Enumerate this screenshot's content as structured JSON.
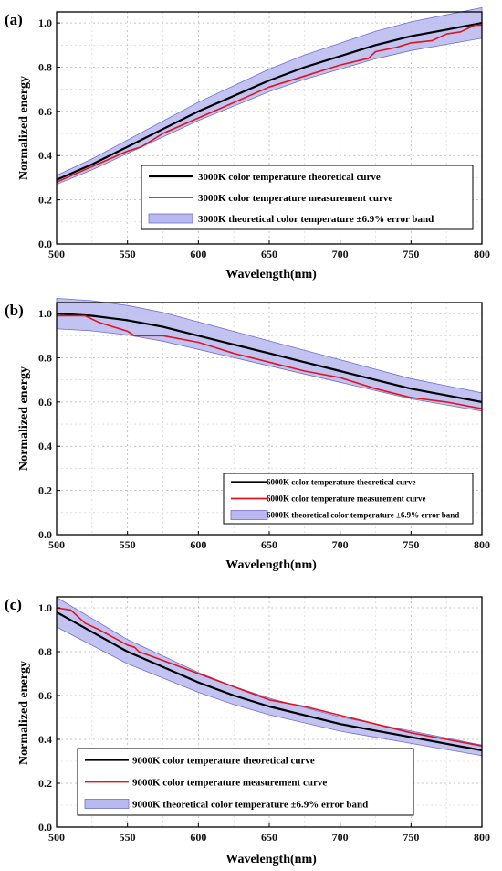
{
  "chart_data": [
    {
      "panel_label": "(a)",
      "type": "line",
      "xlabel": "Wavelength(nm)",
      "ylabel": "Normalized energy",
      "xlim": [
        500,
        800
      ],
      "ylim": [
        0,
        1.05
      ],
      "xticks": [
        500,
        550,
        600,
        650,
        700,
        750,
        800
      ],
      "yticks": [
        0.0,
        0.2,
        0.4,
        0.6,
        0.8,
        1.0
      ],
      "grid": true,
      "legend_position": "bottom-right",
      "error_band": {
        "name": "3000K theoretical color temperature ±6.9% error band",
        "relative": 0.069,
        "color": "#b9b9f0"
      },
      "series": [
        {
          "name": "3000K color temperature theoretical curve",
          "color": "#000000",
          "x": [
            500,
            525,
            550,
            575,
            600,
            625,
            650,
            675,
            700,
            725,
            750,
            775,
            800
          ],
          "y": [
            0.29,
            0.36,
            0.44,
            0.52,
            0.6,
            0.67,
            0.74,
            0.8,
            0.85,
            0.9,
            0.94,
            0.97,
            1.0
          ]
        },
        {
          "name": "3000K color temperature measurement curve",
          "color": "#e0141e",
          "x": [
            500,
            525,
            550,
            560,
            575,
            600,
            625,
            650,
            675,
            700,
            720,
            725,
            740,
            750,
            765,
            775,
            785,
            795,
            800
          ],
          "y": [
            0.28,
            0.35,
            0.42,
            0.44,
            0.5,
            0.57,
            0.64,
            0.71,
            0.76,
            0.81,
            0.84,
            0.87,
            0.89,
            0.91,
            0.92,
            0.95,
            0.96,
            0.99,
            0.99
          ]
        }
      ]
    },
    {
      "panel_label": "(b)",
      "type": "line",
      "xlabel": "Wavelength(nm)",
      "ylabel": "Normalized energy",
      "xlim": [
        500,
        800
      ],
      "ylim": [
        0,
        1.05
      ],
      "xticks": [
        500,
        550,
        600,
        650,
        700,
        750,
        800
      ],
      "yticks": [
        0.0,
        0.2,
        0.4,
        0.6,
        0.8,
        1.0
      ],
      "grid": true,
      "legend_position": "bottom-right",
      "error_band": {
        "name": "6000K theoretical color temperature ±6.9% error band",
        "relative": 0.069,
        "color": "#b9b9f0"
      },
      "series": [
        {
          "name": "6000K color temperature theoretical curve",
          "color": "#000000",
          "x": [
            500,
            525,
            550,
            575,
            600,
            625,
            650,
            675,
            700,
            725,
            750,
            775,
            800
          ],
          "y": [
            1.0,
            0.99,
            0.97,
            0.94,
            0.9,
            0.86,
            0.82,
            0.78,
            0.74,
            0.7,
            0.66,
            0.63,
            0.6
          ]
        },
        {
          "name": "6000K color temperature measurement curve",
          "color": "#e0141e",
          "x": [
            500,
            510,
            520,
            530,
            550,
            555,
            575,
            600,
            625,
            650,
            675,
            700,
            725,
            750,
            775,
            800
          ],
          "y": [
            0.99,
            0.99,
            0.99,
            0.96,
            0.92,
            0.9,
            0.9,
            0.87,
            0.82,
            0.78,
            0.74,
            0.71,
            0.66,
            0.62,
            0.6,
            0.57
          ]
        }
      ]
    },
    {
      "panel_label": "(c)",
      "type": "line",
      "xlabel": "Wavelength(nm)",
      "ylabel": "Normalized energy",
      "xlim": [
        500,
        800
      ],
      "ylim": [
        0,
        1.05
      ],
      "xticks": [
        500,
        550,
        600,
        650,
        700,
        750,
        800
      ],
      "yticks": [
        0.0,
        0.2,
        0.4,
        0.6,
        0.8,
        1.0
      ],
      "grid": true,
      "legend_position": "bottom-left",
      "error_band": {
        "name": "9000K theoretical color temperature ±6.9% error band",
        "relative": 0.069,
        "color": "#b9b9f0"
      },
      "series": [
        {
          "name": "9000K color temperature theoretical curve",
          "color": "#000000",
          "x": [
            500,
            525,
            550,
            575,
            600,
            625,
            650,
            675,
            700,
            725,
            750,
            775,
            800
          ],
          "y": [
            0.98,
            0.89,
            0.8,
            0.73,
            0.66,
            0.6,
            0.55,
            0.51,
            0.47,
            0.44,
            0.41,
            0.38,
            0.35
          ]
        },
        {
          "name": "9000K color temperature measurement curve",
          "color": "#e0141e",
          "x": [
            500,
            510,
            520,
            530,
            550,
            555,
            558,
            575,
            600,
            625,
            650,
            675,
            700,
            725,
            750,
            775,
            800
          ],
          "y": [
            1.0,
            0.99,
            0.93,
            0.9,
            0.83,
            0.82,
            0.8,
            0.76,
            0.7,
            0.64,
            0.58,
            0.55,
            0.51,
            0.47,
            0.43,
            0.4,
            0.37
          ]
        }
      ]
    }
  ]
}
